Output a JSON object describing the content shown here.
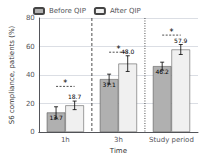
{
  "chart_data": {
    "type": "bar",
    "categories": [
      "1h",
      "3h",
      "Study period"
    ],
    "series": [
      {
        "name": "Before QIP",
        "color": "#b0b0b0",
        "values": [
          13.7,
          37.1,
          46.2
        ],
        "errors": [
          4.0,
          3.5,
          2.8
        ]
      },
      {
        "name": "After QIP",
        "color": "#f0f0f0",
        "values": [
          18.7,
          48.0,
          57.9
        ],
        "value_labels": [
          "18.7",
          "48.0",
          "57.9"
        ],
        "errors": [
          3.0,
          5.5,
          3.5
        ]
      }
    ],
    "xlabel": "Time",
    "ylabel": "S6 compliance, patients (%)",
    "ylim": [
      0,
      80
    ],
    "yticks": [
      0,
      20,
      40,
      60,
      80
    ],
    "data_labels": true,
    "legend": "upper left",
    "annotations": [
      {
        "text": "*",
        "category": "1h",
        "y": 32
      },
      {
        "text": "*",
        "category": "3h",
        "y": 56
      },
      {
        "text": "*",
        "category": "Study period",
        "y": 68
      }
    ]
  }
}
